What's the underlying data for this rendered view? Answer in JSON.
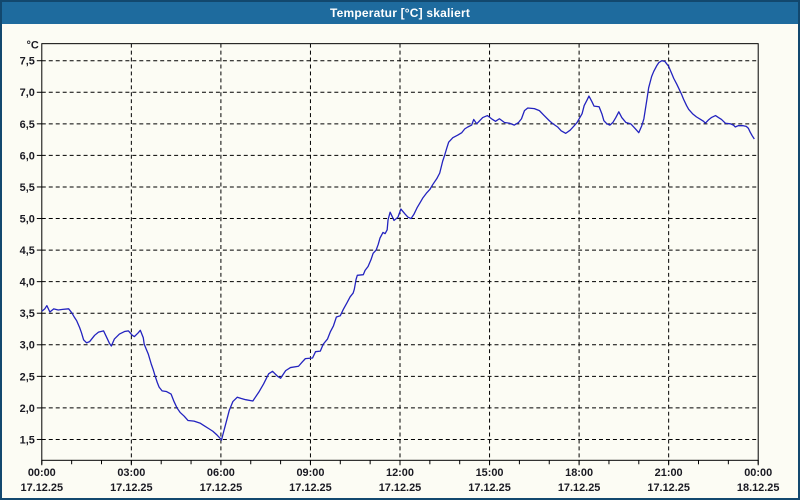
{
  "window": {
    "title": "Temperatur [°C] skaliert"
  },
  "colors": {
    "title_bar": "#1e6b9e",
    "title_text": "#ffffff",
    "window_border": "#12486e",
    "background": "#fcfcf4",
    "line": "#2323bf",
    "grid": "#000000",
    "tick_label": "#1a1a22"
  },
  "chart_data": {
    "type": "line",
    "title": "Temperatur [°C] skaliert",
    "unit_label": "°C",
    "legend": "none",
    "grid": "dashed",
    "x_axis": {
      "range_hours": [
        0,
        24
      ],
      "minor_tick_every_hours": 1,
      "major_ticks": [
        {
          "t": 0,
          "time": "00:00",
          "date": "17.12.25"
        },
        {
          "t": 3,
          "time": "03:00",
          "date": "17.12.25"
        },
        {
          "t": 6,
          "time": "06:00",
          "date": "17.12.25"
        },
        {
          "t": 9,
          "time": "09:00",
          "date": "17.12.25"
        },
        {
          "t": 12,
          "time": "12:00",
          "date": "17.12.25"
        },
        {
          "t": 15,
          "time": "15:00",
          "date": "17.12.25"
        },
        {
          "t": 18,
          "time": "18:00",
          "date": "17.12.25"
        },
        {
          "t": 21,
          "time": "21:00",
          "date": "17.12.25"
        },
        {
          "t": 24,
          "time": "00:00",
          "date": "18.12.25"
        }
      ]
    },
    "y_axis": {
      "view_range": [
        1.17,
        7.77
      ],
      "ticks": [
        {
          "v": 1.5,
          "label": "1,5"
        },
        {
          "v": 2.0,
          "label": "2,0"
        },
        {
          "v": 2.5,
          "label": "2,5"
        },
        {
          "v": 3.0,
          "label": "3,0"
        },
        {
          "v": 3.5,
          "label": "3,5"
        },
        {
          "v": 4.0,
          "label": "4,0"
        },
        {
          "v": 4.5,
          "label": "4,5"
        },
        {
          "v": 5.0,
          "label": "5,0"
        },
        {
          "v": 5.5,
          "label": "5,5"
        },
        {
          "v": 6.0,
          "label": "6,0"
        },
        {
          "v": 6.5,
          "label": "6,5"
        },
        {
          "v": 7.0,
          "label": "7,0"
        },
        {
          "v": 7.5,
          "label": "7,5"
        }
      ]
    },
    "series": [
      {
        "name": "Temperatur",
        "color": "#2323bf",
        "points": [
          [
            0,
            3.53
          ],
          [
            0.1,
            3.57
          ],
          [
            0.17,
            3.62
          ],
          [
            0.27,
            3.52
          ],
          [
            0.4,
            3.57
          ],
          [
            0.55,
            3.55
          ],
          [
            0.7,
            3.56
          ],
          [
            0.9,
            3.57
          ],
          [
            1,
            3.51
          ],
          [
            1.1,
            3.43
          ],
          [
            1.17,
            3.38
          ],
          [
            1.27,
            3.27
          ],
          [
            1.33,
            3.19
          ],
          [
            1.4,
            3.08
          ],
          [
            1.5,
            3.03
          ],
          [
            1.6,
            3.05
          ],
          [
            1.77,
            3.15
          ],
          [
            1.9,
            3.2
          ],
          [
            2.07,
            3.22
          ],
          [
            2.17,
            3.12
          ],
          [
            2.27,
            3.02
          ],
          [
            2.33,
            2.98
          ],
          [
            2.43,
            3.09
          ],
          [
            2.6,
            3.17
          ],
          [
            2.77,
            3.21
          ],
          [
            2.9,
            3.22
          ],
          [
            3.03,
            3.15
          ],
          [
            3.1,
            3.13
          ],
          [
            3.23,
            3.19
          ],
          [
            3.3,
            3.23
          ],
          [
            3.4,
            3.11
          ],
          [
            3.43,
            3.01
          ],
          [
            3.5,
            2.93
          ],
          [
            3.57,
            2.85
          ],
          [
            3.67,
            2.69
          ],
          [
            3.73,
            2.61
          ],
          [
            3.8,
            2.5
          ],
          [
            3.87,
            2.4
          ],
          [
            3.93,
            2.33
          ],
          [
            4.03,
            2.27
          ],
          [
            4.17,
            2.26
          ],
          [
            4.33,
            2.22
          ],
          [
            4.43,
            2.1
          ],
          [
            4.53,
            2.0
          ],
          [
            4.63,
            1.93
          ],
          [
            4.77,
            1.87
          ],
          [
            4.9,
            1.8
          ],
          [
            5.1,
            1.79
          ],
          [
            5.3,
            1.76
          ],
          [
            5.43,
            1.72
          ],
          [
            5.6,
            1.67
          ],
          [
            5.73,
            1.63
          ],
          [
            5.87,
            1.57
          ],
          [
            5.97,
            1.52
          ],
          [
            6.02,
            1.49
          ],
          [
            6.08,
            1.6
          ],
          [
            6.18,
            1.78
          ],
          [
            6.28,
            1.96
          ],
          [
            6.4,
            2.1
          ],
          [
            6.55,
            2.17
          ],
          [
            6.67,
            2.15
          ],
          [
            6.83,
            2.13
          ],
          [
            7.07,
            2.11
          ],
          [
            7.27,
            2.25
          ],
          [
            7.43,
            2.38
          ],
          [
            7.6,
            2.54
          ],
          [
            7.73,
            2.58
          ],
          [
            7.9,
            2.5
          ],
          [
            8,
            2.47
          ],
          [
            8.17,
            2.59
          ],
          [
            8.33,
            2.64
          ],
          [
            8.6,
            2.66
          ],
          [
            8.73,
            2.73
          ],
          [
            8.83,
            2.78
          ],
          [
            9.07,
            2.79
          ],
          [
            9.17,
            2.89
          ],
          [
            9.33,
            2.9
          ],
          [
            9.43,
            3.01
          ],
          [
            9.57,
            3.09
          ],
          [
            9.67,
            3.21
          ],
          [
            9.77,
            3.3
          ],
          [
            9.87,
            3.44
          ],
          [
            10,
            3.46
          ],
          [
            10.1,
            3.56
          ],
          [
            10.23,
            3.67
          ],
          [
            10.33,
            3.76
          ],
          [
            10.43,
            3.82
          ],
          [
            10.47,
            3.88
          ],
          [
            10.53,
            4.04
          ],
          [
            10.57,
            4.1
          ],
          [
            10.77,
            4.11
          ],
          [
            10.83,
            4.18
          ],
          [
            10.93,
            4.24
          ],
          [
            11.03,
            4.35
          ],
          [
            11.1,
            4.45
          ],
          [
            11.2,
            4.5
          ],
          [
            11.27,
            4.59
          ],
          [
            11.33,
            4.69
          ],
          [
            11.43,
            4.78
          ],
          [
            11.5,
            4.76
          ],
          [
            11.57,
            4.82
          ],
          [
            11.6,
            4.98
          ],
          [
            11.67,
            5.1
          ],
          [
            11.8,
            4.97
          ],
          [
            11.93,
            5.02
          ],
          [
            12.03,
            5.15
          ],
          [
            12.17,
            5.07
          ],
          [
            12.27,
            5.02
          ],
          [
            12.37,
            5.0
          ],
          [
            12.47,
            5.07
          ],
          [
            12.57,
            5.17
          ],
          [
            12.67,
            5.25
          ],
          [
            12.77,
            5.33
          ],
          [
            12.9,
            5.41
          ],
          [
            13,
            5.46
          ],
          [
            13.1,
            5.54
          ],
          [
            13.23,
            5.63
          ],
          [
            13.33,
            5.72
          ],
          [
            13.43,
            5.91
          ],
          [
            13.5,
            6.01
          ],
          [
            13.57,
            6.12
          ],
          [
            13.63,
            6.21
          ],
          [
            13.77,
            6.28
          ],
          [
            13.93,
            6.32
          ],
          [
            14.07,
            6.36
          ],
          [
            14.17,
            6.42
          ],
          [
            14.27,
            6.45
          ],
          [
            14.4,
            6.48
          ],
          [
            14.47,
            6.57
          ],
          [
            14.57,
            6.5
          ],
          [
            14.67,
            6.55
          ],
          [
            14.77,
            6.6
          ],
          [
            14.93,
            6.63
          ],
          [
            15.1,
            6.57
          ],
          [
            15.2,
            6.54
          ],
          [
            15.33,
            6.58
          ],
          [
            15.5,
            6.52
          ],
          [
            15.67,
            6.51
          ],
          [
            15.83,
            6.48
          ],
          [
            15.97,
            6.52
          ],
          [
            16.07,
            6.58
          ],
          [
            16.17,
            6.71
          ],
          [
            16.28,
            6.75
          ],
          [
            16.5,
            6.74
          ],
          [
            16.67,
            6.71
          ],
          [
            16.83,
            6.63
          ],
          [
            17,
            6.55
          ],
          [
            17.1,
            6.51
          ],
          [
            17.28,
            6.45
          ],
          [
            17.4,
            6.39
          ],
          [
            17.55,
            6.35
          ],
          [
            17.7,
            6.4
          ],
          [
            17.8,
            6.45
          ],
          [
            17.93,
            6.52
          ],
          [
            18.1,
            6.66
          ],
          [
            18.17,
            6.79
          ],
          [
            18.27,
            6.88
          ],
          [
            18.33,
            6.94
          ],
          [
            18.43,
            6.85
          ],
          [
            18.5,
            6.78
          ],
          [
            18.67,
            6.77
          ],
          [
            18.77,
            6.65
          ],
          [
            18.83,
            6.55
          ],
          [
            18.93,
            6.5
          ],
          [
            19.03,
            6.48
          ],
          [
            19.13,
            6.52
          ],
          [
            19.23,
            6.6
          ],
          [
            19.33,
            6.69
          ],
          [
            19.43,
            6.6
          ],
          [
            19.57,
            6.52
          ],
          [
            19.73,
            6.5
          ],
          [
            19.87,
            6.43
          ],
          [
            20,
            6.36
          ],
          [
            20.1,
            6.47
          ],
          [
            20.17,
            6.58
          ],
          [
            20.27,
            6.88
          ],
          [
            20.33,
            7.07
          ],
          [
            20.43,
            7.25
          ],
          [
            20.5,
            7.33
          ],
          [
            20.6,
            7.42
          ],
          [
            20.67,
            7.47
          ],
          [
            20.77,
            7.5
          ],
          [
            20.87,
            7.49
          ],
          [
            21,
            7.41
          ],
          [
            21.1,
            7.3
          ],
          [
            21.17,
            7.22
          ],
          [
            21.27,
            7.13
          ],
          [
            21.33,
            7.07
          ],
          [
            21.43,
            6.97
          ],
          [
            21.5,
            6.89
          ],
          [
            21.6,
            6.79
          ],
          [
            21.67,
            6.73
          ],
          [
            21.8,
            6.66
          ],
          [
            21.93,
            6.61
          ],
          [
            22.07,
            6.57
          ],
          [
            22.17,
            6.54
          ],
          [
            22.23,
            6.51
          ],
          [
            22.33,
            6.56
          ],
          [
            22.43,
            6.6
          ],
          [
            22.57,
            6.63
          ],
          [
            22.67,
            6.6
          ],
          [
            22.77,
            6.57
          ],
          [
            22.9,
            6.51
          ],
          [
            23.07,
            6.5
          ],
          [
            23.17,
            6.48
          ],
          [
            23.23,
            6.45
          ],
          [
            23.33,
            6.47
          ],
          [
            23.5,
            6.47
          ],
          [
            23.6,
            6.46
          ],
          [
            23.67,
            6.43
          ],
          [
            23.73,
            6.37
          ],
          [
            23.8,
            6.31
          ],
          [
            23.87,
            6.26
          ]
        ]
      }
    ]
  }
}
